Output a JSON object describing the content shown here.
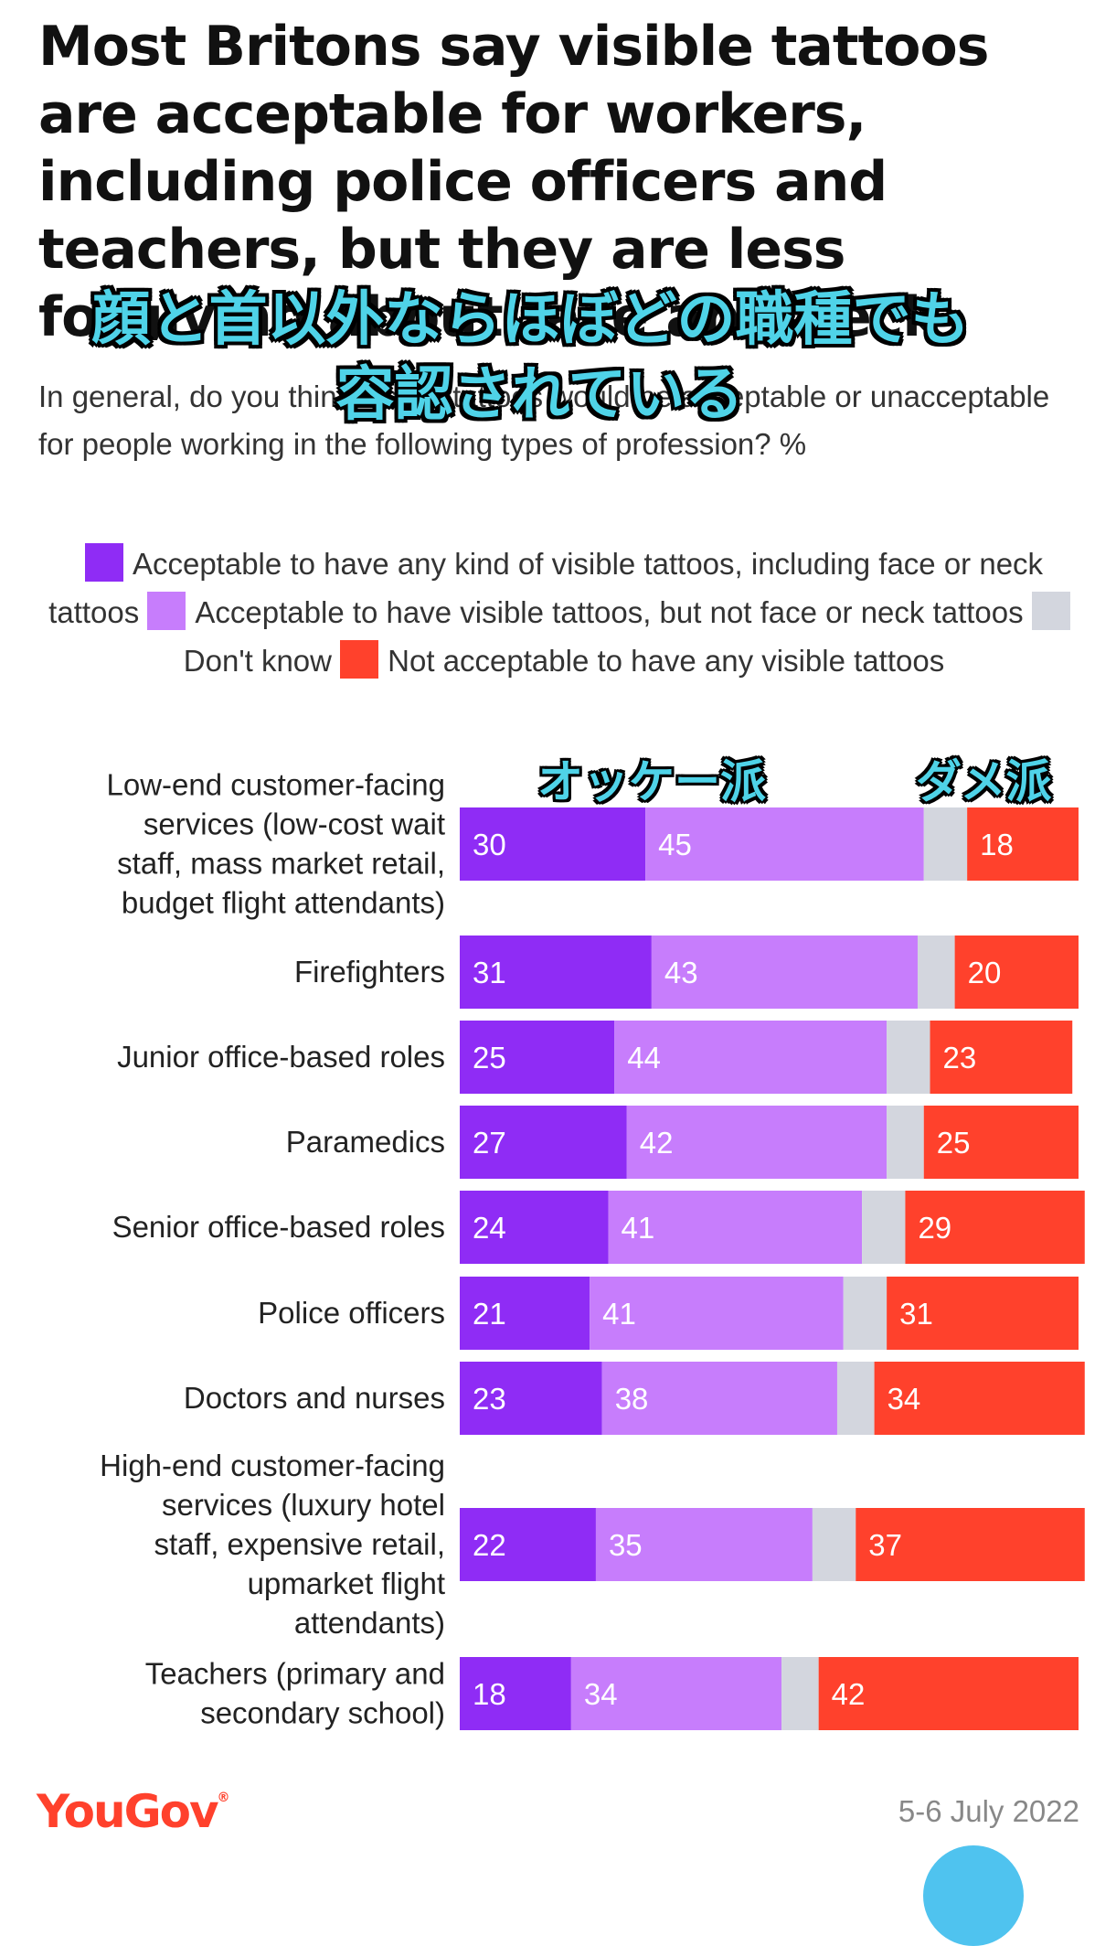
{
  "title": "Most Britons say visible tattoos are acceptable for workers, including police officers and teachers, but they are less forgiving about face and neck tattoos",
  "overlay_caption": {
    "line1": "顔と首以外ならほぼどの職種でも",
    "line2": "容認されている"
  },
  "subtitle": "In general, do you think visible tattoos would be acceptable or unacceptable for people working in the following types of profession? %",
  "legend": [
    {
      "label": "Acceptable to have any kind of visible tattoos, including face or neck tattoos",
      "color": "#8f2cf5"
    },
    {
      "label": "Acceptable to have visible tattoos, but not face or neck tattoos",
      "color": "#c77dfc"
    },
    {
      "label": "Don't know",
      "color": "#d3d6de"
    },
    {
      "label": "Not acceptable to have any visible tattoos",
      "color": "#ff412c"
    }
  ],
  "callouts": {
    "ok": "オッケー派",
    "no": "ダメ派"
  },
  "chart_data": {
    "type": "bar",
    "orientation": "horizontal",
    "stacked": true,
    "unit": "%",
    "categories": [
      "Low-end customer-facing services (low-cost wait staff, mass market retail, budget flight attendants)",
      "Firefighters",
      "Junior office-based roles",
      "Paramedics",
      "Senior office-based roles",
      "Police officers",
      "Doctors and nurses",
      "High-end customer-facing services (luxury hotel staff, expensive retail, upmarket flight attendants)",
      "Teachers (primary and secondary school)"
    ],
    "category_lines": [
      [
        "Low-end customer-facing",
        "services (low-cost wait",
        "staff, mass market retail,",
        "budget flight attendants)"
      ],
      [
        "Firefighters"
      ],
      [
        "Junior office-based roles"
      ],
      [
        "Paramedics"
      ],
      [
        "Senior office-based roles"
      ],
      [
        "Police officers"
      ],
      [
        "Doctors and nurses"
      ],
      [
        "High-end customer-facing",
        "services (luxury hotel",
        "staff, expensive retail,",
        "upmarket flight",
        "attendants)"
      ],
      [
        "Teachers (primary and",
        "secondary school)"
      ]
    ],
    "series": [
      {
        "name": "Acceptable to have any kind of visible tattoos, including face or neck tattoos",
        "color": "#8f2cf5",
        "values": [
          30,
          31,
          25,
          27,
          24,
          21,
          23,
          22,
          18
        ]
      },
      {
        "name": "Acceptable to have visible tattoos, but not face or neck tattoos",
        "color": "#c77dfc",
        "values": [
          45,
          43,
          44,
          42,
          41,
          41,
          38,
          35,
          34
        ]
      },
      {
        "name": "Don't know",
        "color": "#d3d6de",
        "values": [
          7,
          6,
          7,
          6,
          7,
          7,
          6,
          7,
          6
        ]
      },
      {
        "name": "Not acceptable to have any visible tattoos",
        "color": "#ff412c",
        "values": [
          18,
          20,
          23,
          25,
          29,
          31,
          34,
          37,
          42
        ]
      }
    ],
    "labeled_series": [
      0,
      1,
      3
    ],
    "xlim": [
      0,
      100
    ]
  },
  "footer": {
    "logo": "YouGov",
    "date": "5-6 July 2022"
  }
}
